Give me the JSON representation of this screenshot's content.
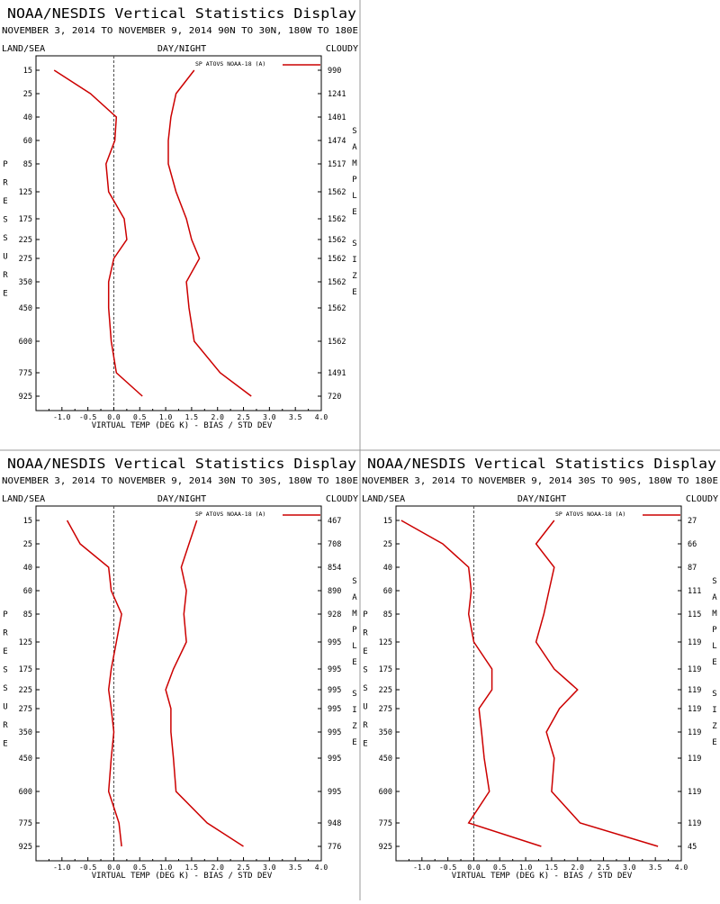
{
  "header": {
    "title": "NOAA/NESDIS Vertical Statistics Display",
    "left_label": "LAND/SEA",
    "center_label": "DAY/NIGHT",
    "right_label": "CLOUDY",
    "y_axis_label": "PRESSURE",
    "y2_axis_label": "SAMPLE SIZE",
    "x_axis_label": "VIRTUAL TEMP (DEG K) - BIAS / STD DEV",
    "legend_label": "SP ATOVS NOAA-18 (A)"
  },
  "colors": {
    "series": "#cc0000",
    "zero_line": "#4a4a4a",
    "frame": "#000000",
    "divider": "#999999"
  },
  "chart_data": [
    {
      "type": "line",
      "subtitle": "NOVEMBER 3, 2014 TO NOVEMBER 9, 2014  90N TO 30N, 180W TO 180E",
      "levels": [
        15,
        25,
        40,
        60,
        85,
        125,
        175,
        225,
        275,
        350,
        450,
        600,
        775,
        925
      ],
      "level_labels": [
        "15",
        "25",
        "40",
        "60",
        "85",
        "125",
        "175",
        "225",
        "275",
        "350",
        "450",
        "600",
        "775",
        "925"
      ],
      "x_ticks": [
        "-1.0",
        "-0.5",
        "0.0",
        "0.5",
        "1.0",
        "1.5",
        "2.0",
        "2.5",
        "3.0",
        "3.5",
        "4.0"
      ],
      "xlim": [
        -1.5,
        4.0
      ],
      "sample_sizes": [
        "990",
        "1241",
        "1401",
        "1474",
        "1517",
        "1562",
        "1562",
        "1562",
        "1562",
        "1562",
        "1562",
        "1562",
        "1491",
        "720"
      ],
      "series": [
        {
          "values": [
            -1.15,
            -0.45,
            0.05,
            0.02,
            -0.15,
            -0.1,
            0.2,
            0.25,
            0.0,
            -0.1,
            -0.1,
            -0.05,
            0.05,
            0.55
          ]
        },
        {
          "values": [
            1.55,
            1.2,
            1.1,
            1.05,
            1.05,
            1.2,
            1.4,
            1.5,
            1.65,
            1.4,
            1.45,
            1.55,
            2.05,
            2.65
          ]
        }
      ]
    },
    {
      "type": "line",
      "subtitle": "NOVEMBER 3, 2014 TO NOVEMBER 9, 2014  30N TO 30S, 180W TO 180E",
      "levels": [
        15,
        25,
        40,
        60,
        85,
        125,
        175,
        225,
        275,
        350,
        450,
        600,
        775,
        925
      ],
      "level_labels": [
        "15",
        "25",
        "40",
        "60",
        "85",
        "125",
        "175",
        "225",
        "275",
        "350",
        "450",
        "600",
        "775",
        "925"
      ],
      "x_ticks": [
        "-1.0",
        "-0.5",
        "0.0",
        "0.5",
        "1.0",
        "1.5",
        "2.0",
        "2.5",
        "3.0",
        "3.5",
        "4.0"
      ],
      "xlim": [
        -1.5,
        4.0
      ],
      "sample_sizes": [
        "467",
        "708",
        "854",
        "890",
        "928",
        "995",
        "995",
        "995",
        "995",
        "995",
        "995",
        "995",
        "948",
        "776"
      ],
      "series": [
        {
          "values": [
            -0.9,
            -0.65,
            -0.1,
            -0.05,
            0.15,
            0.05,
            -0.05,
            -0.1,
            -0.05,
            0.0,
            -0.05,
            -0.1,
            0.1,
            0.15
          ]
        },
        {
          "values": [
            1.6,
            1.45,
            1.3,
            1.4,
            1.35,
            1.4,
            1.15,
            1.0,
            1.1,
            1.1,
            1.15,
            1.2,
            1.8,
            2.5
          ]
        }
      ]
    },
    {
      "type": "line",
      "subtitle": "NOVEMBER 3, 2014 TO NOVEMBER 9, 2014  30S TO 90S, 180W TO 180E",
      "levels": [
        15,
        25,
        40,
        60,
        85,
        125,
        175,
        225,
        275,
        350,
        450,
        600,
        775,
        925
      ],
      "level_labels": [
        "15",
        "25",
        "40",
        "60",
        "85",
        "125",
        "175",
        "225",
        "275",
        "350",
        "450",
        "600",
        "775",
        "925"
      ],
      "x_ticks": [
        "-1.0",
        "-0.5",
        "0.0",
        "0.5",
        "1.0",
        "1.5",
        "2.0",
        "2.5",
        "3.0",
        "3.5",
        "4.0"
      ],
      "xlim": [
        -1.5,
        4.0
      ],
      "sample_sizes": [
        "27",
        "66",
        "87",
        "111",
        "115",
        "119",
        "119",
        "119",
        "119",
        "119",
        "119",
        "119",
        "119",
        "45"
      ],
      "series": [
        {
          "values": [
            -1.4,
            -0.6,
            -0.1,
            -0.05,
            -0.1,
            0.0,
            0.35,
            0.35,
            0.1,
            0.15,
            0.2,
            0.3,
            -0.1,
            1.3
          ]
        },
        {
          "values": [
            1.55,
            1.2,
            1.55,
            1.45,
            1.35,
            1.2,
            1.55,
            2.0,
            1.65,
            1.4,
            1.55,
            1.5,
            2.05,
            3.55
          ]
        }
      ]
    }
  ]
}
